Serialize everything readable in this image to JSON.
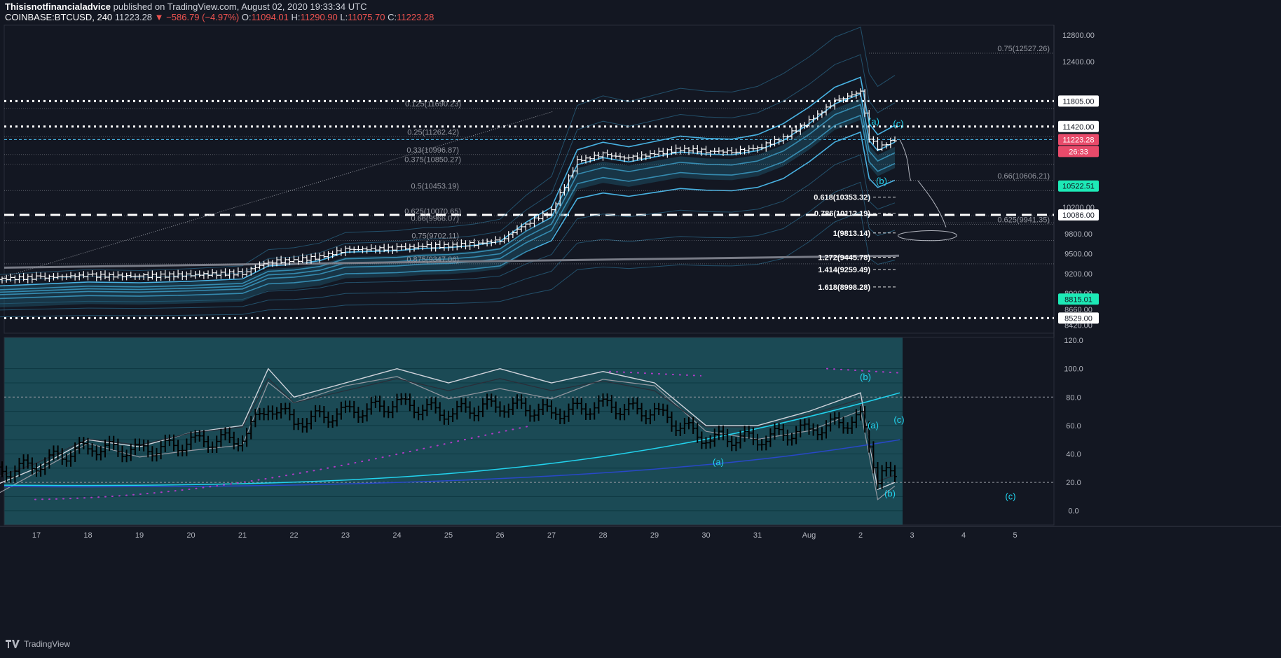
{
  "header": {
    "author": "Thisisnotfinancialadvice",
    "published": "published on TradingView.com, August 02, 2020 19:33:34 UTC",
    "symbol": "COINBASE:BTCUSD, 240",
    "last": "11223.28",
    "change": "−586.79 (−4.97%)",
    "o_label": "O:",
    "o": "11094.01",
    "h_label": "H:",
    "h": "11290.90",
    "l_label": "L:",
    "l": "11075.70",
    "c_label": "C:",
    "c": "11223.28"
  },
  "footer": {
    "brand": "TradingView"
  },
  "colors": {
    "background": "#131722",
    "candle": "#ffffff",
    "ribbon": "#4fc3f7",
    "fib": "#9598a1",
    "lower_bg": "#1b4a55",
    "cyan": "#22d3ee",
    "blue": "#1e3a8a",
    "dots": "#b03cc7",
    "price_tag": "#e84a6a",
    "teal_tag": "#1de9b6"
  },
  "chart_data": [
    {
      "type": "candlestick",
      "panel": "price",
      "y_ticks": [
        "12800.00",
        "12400.00",
        "11805.00",
        "11420.00",
        "10522.51",
        "10086.00",
        "9800.00",
        "9500.00",
        "9200.00",
        "8900.00",
        "8815.01",
        "8660.00",
        "8529.00",
        "8420.00",
        "11223.28",
        "26:33",
        "10200.00"
      ],
      "y_tick_values": [
        12800,
        12400,
        11805,
        11420,
        10522.51,
        10086,
        9800,
        9500,
        9200,
        8900,
        8815.01,
        8660,
        8529,
        8420,
        11223.28,
        11223.28,
        10200
      ],
      "ylim": [
        8300,
        12950
      ],
      "x_ticks": [
        "17",
        "18",
        "19",
        "20",
        "21",
        "22",
        "23",
        "24",
        "25",
        "26",
        "27",
        "28",
        "29",
        "30",
        "31",
        "Aug",
        "2",
        "3",
        "4",
        "5"
      ],
      "x_tick_dates": [
        "2020-07-17",
        "2020-07-18",
        "2020-07-19",
        "2020-07-20",
        "2020-07-21",
        "2020-07-22",
        "2020-07-23",
        "2020-07-24",
        "2020-07-25",
        "2020-07-26",
        "2020-07-27",
        "2020-07-28",
        "2020-07-29",
        "2020-07-30",
        "2020-07-31",
        "2020-08-01",
        "2020-08-02",
        "2020-08-03",
        "2020-08-04",
        "2020-08-05"
      ],
      "close_series": [
        [
          "2020-07-16",
          9110
        ],
        [
          "2020-07-17",
          9140
        ],
        [
          "2020-07-18",
          9170
        ],
        [
          "2020-07-19",
          9160
        ],
        [
          "2020-07-20",
          9180
        ],
        [
          "2020-07-21",
          9210
        ],
        [
          "2020-07-21T12:00",
          9380
        ],
        [
          "2020-07-22",
          9400
        ],
        [
          "2020-07-22T12:00",
          9450
        ],
        [
          "2020-07-23",
          9560
        ],
        [
          "2020-07-24",
          9580
        ],
        [
          "2020-07-24T12:00",
          9610
        ],
        [
          "2020-07-25",
          9620
        ],
        [
          "2020-07-25T12:00",
          9650
        ],
        [
          "2020-07-26",
          9700
        ],
        [
          "2020-07-26T12:00",
          9950
        ],
        [
          "2020-07-27",
          10150
        ],
        [
          "2020-07-27T12:00",
          10900
        ],
        [
          "2020-07-28",
          11000
        ],
        [
          "2020-07-28T12:00",
          10940
        ],
        [
          "2020-07-29",
          11010
        ],
        [
          "2020-07-29T12:00",
          11080
        ],
        [
          "2020-07-30",
          11050
        ],
        [
          "2020-07-30T12:00",
          11040
        ],
        [
          "2020-07-31",
          11100
        ],
        [
          "2020-07-31T12:00",
          11250
        ],
        [
          "2020-08-01",
          11500
        ],
        [
          "2020-08-01T12:00",
          11800
        ],
        [
          "2020-08-02",
          11950
        ],
        [
          "2020-08-02T04:00",
          11250
        ],
        [
          "2020-08-02T08:00",
          11100
        ],
        [
          "2020-08-02T16:00",
          11223.28
        ]
      ],
      "horizontal_levels": [
        {
          "value": 11805.0,
          "style": "dotted-white"
        },
        {
          "value": 11420.0,
          "style": "dotted-white"
        },
        {
          "value": 11223.28,
          "style": "dashed-cyan"
        },
        {
          "value": 10086.0,
          "style": "dashed-white"
        },
        {
          "value": 8529.0,
          "style": "dotted-white"
        }
      ],
      "fib_levels": [
        {
          "label": "0.125(11690.23)",
          "value": 11690.23
        },
        {
          "label": "0.25(11262.42)",
          "value": 11262.42
        },
        {
          "label": "0.33(10996.87)",
          "value": 10996.87
        },
        {
          "label": "0.375(10850.27)",
          "value": 10850.27
        },
        {
          "label": "0.5(10453.19)",
          "value": 10453.19
        },
        {
          "label": "0.625(10070.65)",
          "value": 10070.65
        },
        {
          "label": "0.66(9966.07)",
          "value": 9966.07
        },
        {
          "label": "0.75(9702.11)",
          "value": 9702.11
        },
        {
          "label": "0.875(9347.06)",
          "value": 9347.06
        },
        {
          "label": "0.75(12527.26)",
          "value": 12527.26
        },
        {
          "label": "0.66(10606.21)",
          "value": 10606.21
        },
        {
          "label": "0.625(9941.35)",
          "value": 9941.35
        }
      ],
      "ext_levels": [
        {
          "label": "0.618(10353.32)",
          "value": 10353.32
        },
        {
          "label": "0.786(10112.19)",
          "value": 10112.19
        },
        {
          "label": "1(9813.14)",
          "value": 9813.14
        },
        {
          "label": "1.272(9445.78)",
          "value": 9445.78
        },
        {
          "label": "1.414(9259.49)",
          "value": 9259.49
        },
        {
          "label": "1.618(8998.28)",
          "value": 8998.28
        }
      ],
      "wave_labels": [
        "(a)",
        "(b)",
        "(c)"
      ]
    },
    {
      "type": "line",
      "panel": "oscillator",
      "y_ticks": [
        "120.0",
        "100.0",
        "80.0",
        "60.0",
        "40.0",
        "20.0",
        "0.0"
      ],
      "y_tick_values": [
        120,
        100,
        80,
        60,
        40,
        20,
        0
      ],
      "ylim": [
        -10,
        122
      ],
      "series_values": [
        [
          "2020-07-16",
          15
        ],
        [
          "2020-07-17",
          30
        ],
        [
          "2020-07-18",
          50
        ],
        [
          "2020-07-19",
          45
        ],
        [
          "2020-07-20",
          55
        ],
        [
          "2020-07-21",
          60
        ],
        [
          "2020-07-21T12:00",
          100
        ],
        [
          "2020-07-22",
          80
        ],
        [
          "2020-07-23",
          90
        ],
        [
          "2020-07-24",
          100
        ],
        [
          "2020-07-25",
          90
        ],
        [
          "2020-07-26",
          100
        ],
        [
          "2020-07-27",
          90
        ],
        [
          "2020-07-28",
          98
        ],
        [
          "2020-07-29",
          90
        ],
        [
          "2020-07-30",
          60
        ],
        [
          "2020-07-31",
          60
        ],
        [
          "2020-08-01",
          70
        ],
        [
          "2020-08-02",
          83
        ],
        [
          "2020-08-02T08:00",
          15
        ],
        [
          "2020-08-02T16:00",
          20
        ]
      ],
      "wave_labels": [
        "(a)",
        "(b)",
        "(c)",
        "(a)",
        "(b)",
        "(c)"
      ]
    }
  ]
}
